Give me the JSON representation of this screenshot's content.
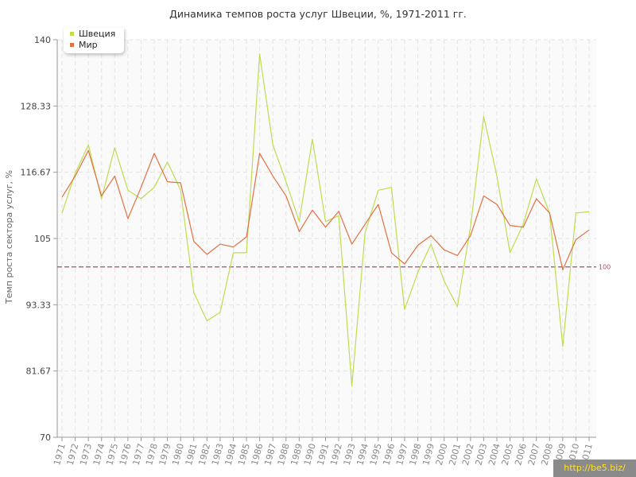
{
  "chart_data": {
    "type": "line",
    "title": "Динамика темпов роста услуг Швеции, %, 1971-2011 гг.",
    "ylabel": "Темп роста сектора услуг, %",
    "xlabel": "",
    "ylim": [
      70,
      140
    ],
    "yticks": [
      "70",
      "81.67",
      "93.33",
      "105",
      "116.67",
      "128.33",
      "140"
    ],
    "x": [
      "1971",
      "1972",
      "1973",
      "1974",
      "1975",
      "1976",
      "1977",
      "1978",
      "1979",
      "1980",
      "1981",
      "1982",
      "1983",
      "1984",
      "1985",
      "1986",
      "1987",
      "1988",
      "1989",
      "1990",
      "1991",
      "1992",
      "1993",
      "1994",
      "1995",
      "1996",
      "1997",
      "1998",
      "1999",
      "2000",
      "2001",
      "2002",
      "2003",
      "2004",
      "2005",
      "2006",
      "2007",
      "2008",
      "2009",
      "2010",
      "2011"
    ],
    "series": [
      {
        "name": "Швеция",
        "color": "#bedd4f",
        "values": [
          109.5,
          116.5,
          121.5,
          112,
          121,
          113.5,
          112,
          114,
          118.5,
          113.5,
          95.5,
          90.5,
          92,
          102.5,
          102.5,
          137.5,
          121.5,
          115,
          108,
          122.5,
          108,
          109,
          79,
          106,
          113.5,
          114,
          92.5,
          99,
          104,
          97.5,
          93,
          107,
          126.5,
          116,
          102.5,
          107.5,
          115.5,
          109.5,
          86,
          109.5,
          109.7
        ]
      },
      {
        "name": "Мир",
        "color": "#e07142",
        "values": [
          112.3,
          116,
          120.5,
          112.5,
          116,
          108.5,
          114,
          120,
          115,
          114.8,
          104.5,
          102.2,
          104,
          103.5,
          105.3,
          120,
          116,
          112.5,
          106.2,
          110,
          107,
          109.8,
          104,
          107.5,
          111,
          102.5,
          100.5,
          103.8,
          105.5,
          103,
          102,
          105.5,
          112.5,
          111,
          107.3,
          107,
          112,
          109.5,
          99.5,
          104.8,
          106.5
        ]
      }
    ],
    "reference_line": {
      "value": 100,
      "label": "100",
      "color": "#a84a6a"
    },
    "grid": true,
    "legend_position": "top-left"
  },
  "watermark": "http://be5.biz/"
}
